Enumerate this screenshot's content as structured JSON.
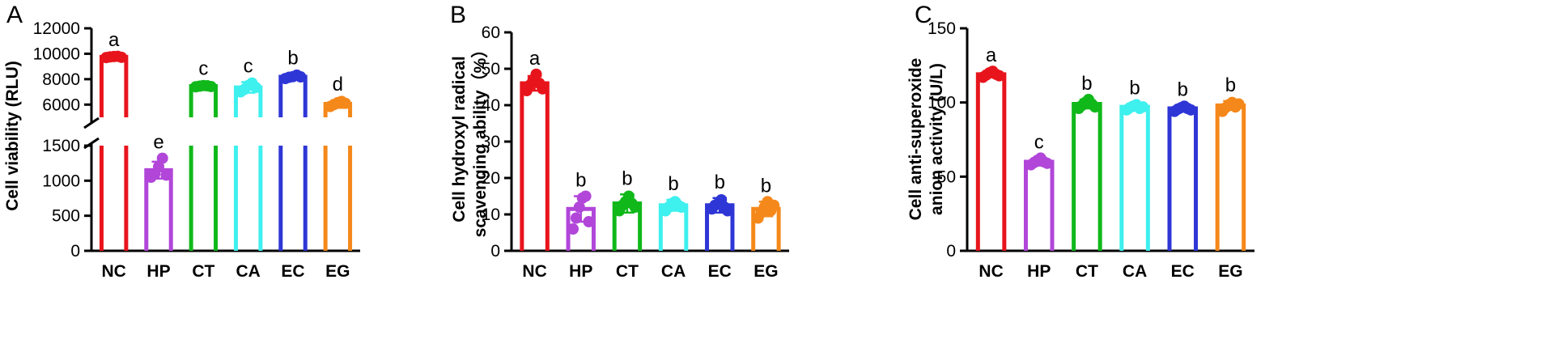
{
  "chart_data": [
    {
      "panel": "A",
      "type": "bar",
      "ylabel": "Cell viability (RLU)",
      "categories": [
        "NC",
        "HP",
        "CT",
        "CA",
        "EC",
        "EG"
      ],
      "values": [
        9750,
        1150,
        7450,
        7350,
        8180,
        6050
      ],
      "errors": [
        80,
        120,
        120,
        420,
        220,
        300
      ],
      "points": [
        [
          9700,
          9750,
          9780,
          9800,
          9720
        ],
        [
          1050,
          1100,
          1200,
          1320,
          1080
        ],
        [
          7400,
          7450,
          7500,
          7480,
          7420
        ],
        [
          7000,
          7200,
          7500,
          7700,
          7350
        ],
        [
          8050,
          8150,
          8200,
          8320,
          8180
        ],
        [
          5850,
          6000,
          6150,
          6250,
          6100
        ]
      ],
      "significance": [
        "a",
        "e",
        "c",
        "c",
        "b",
        "d"
      ],
      "colors": [
        "#e8141c",
        "#b146d9",
        "#10b81a",
        "#3ef0ee",
        "#2f36d6",
        "#f5881a"
      ],
      "broken_axis": true,
      "lower_segment": {
        "ylim": [
          0,
          1500
        ],
        "ticks": [
          "0",
          "500",
          "1000",
          "1500"
        ]
      },
      "upper_segment": {
        "ylim": [
          5000,
          12000
        ],
        "ticks": [
          "6000",
          "8000",
          "10000",
          "12000"
        ]
      }
    },
    {
      "panel": "B",
      "type": "bar",
      "ylabel": "Cell hydroxyl radical scavenging ability（%）",
      "ylabel_lines": [
        "Cell hydroxyl radical",
        "scavenging ability（%）"
      ],
      "categories": [
        "NC",
        "HP",
        "CT",
        "CA",
        "EC",
        "EG"
      ],
      "values": [
        46,
        11.5,
        13,
        12.5,
        12.5,
        11.5
      ],
      "errors": [
        2,
        3.5,
        2.5,
        1.5,
        2,
        2
      ],
      "points": [
        [
          44,
          45.5,
          47,
          48.5,
          46,
          44.5
        ],
        [
          6,
          9,
          12,
          14.5,
          15,
          8
        ],
        [
          11,
          12.5,
          13.5,
          15,
          13,
          12
        ],
        [
          11,
          12,
          13,
          13.5,
          12.5,
          12
        ],
        [
          11.5,
          12.5,
          13,
          14,
          12,
          11
        ],
        [
          9,
          10.5,
          12,
          13.5,
          11,
          12.5
        ]
      ],
      "significance": [
        "a",
        "b",
        "b",
        "b",
        "b",
        "b"
      ],
      "colors": [
        "#e8141c",
        "#b146d9",
        "#10b81a",
        "#3ef0ee",
        "#2f36d6",
        "#f5881a"
      ],
      "ylim": [
        0,
        60
      ],
      "ticks": [
        "0",
        "10",
        "20",
        "30",
        "40",
        "50",
        "60"
      ]
    },
    {
      "panel": "C",
      "type": "bar",
      "ylabel": "Cell anti-superoxide anion activity (U/L)",
      "ylabel_lines": [
        "Cell anti-superoxide",
        "anion activity (U/L)"
      ],
      "categories": [
        "NC",
        "HP",
        "CT",
        "CA",
        "EC",
        "EG"
      ],
      "values": [
        119,
        60,
        99,
        97,
        96,
        98
      ],
      "errors": [
        2,
        2.5,
        3,
        2,
        2,
        3
      ],
      "points": [
        [
          117,
          118.5,
          120,
          121,
          119,
          118
        ],
        [
          58,
          59.5,
          61,
          62.5,
          60,
          59
        ],
        [
          96,
          98,
          100,
          102,
          99,
          97
        ],
        [
          95,
          96.5,
          97.5,
          98.5,
          96,
          97
        ],
        [
          94,
          95.5,
          96.5,
          97.5,
          96,
          95
        ],
        [
          94,
          96.5,
          98.5,
          100,
          97,
          99
        ]
      ],
      "significance": [
        "a",
        "c",
        "b",
        "b",
        "b",
        "b"
      ],
      "colors": [
        "#e8141c",
        "#b146d9",
        "#10b81a",
        "#3ef0ee",
        "#2f36d6",
        "#f5881a"
      ],
      "ylim": [
        0,
        150
      ],
      "ticks": [
        "0",
        "50",
        "100",
        "150"
      ]
    }
  ]
}
